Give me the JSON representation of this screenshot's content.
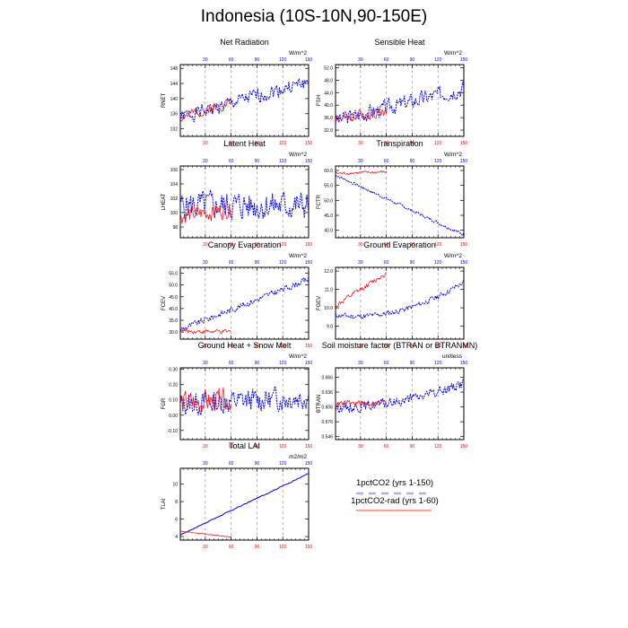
{
  "page_title": "Indonesia (10S-10N,90-150E)",
  "colors": {
    "series1": "#0000ff",
    "series2": "#ff0000",
    "dashed": "#888888"
  },
  "legend": {
    "entries": [
      "1pctCO2 (yrs 1-150)",
      "1pctCO2-rad (yrs 1-60)"
    ]
  },
  "chart_data": [
    {
      "type": "line",
      "title": "Net Radiation",
      "ylabel": "RNET",
      "units": "W/m^2",
      "xlim": [
        1,
        150
      ],
      "ylim": [
        130,
        149
      ],
      "ytick_values": [
        132,
        136,
        140,
        144,
        148
      ],
      "ytick_labels": [
        "132",
        "136",
        "140",
        "144",
        "148"
      ],
      "xtick_values": [
        30,
        60,
        90,
        120,
        150
      ],
      "xtick_labels": [
        "30",
        "60",
        "90",
        "120",
        "150"
      ],
      "vlines": [
        30,
        60,
        90,
        120
      ],
      "series": [
        {
          "color": "blue",
          "style": "dashed",
          "length": 150,
          "start": 135,
          "end": 144.5,
          "noise": 2.2,
          "curve": 0,
          "seed": 1
        },
        {
          "color": "red",
          "style": "solid",
          "length": 60,
          "start": 135,
          "end": 139,
          "noise": 1.6,
          "curve": 0,
          "seed": 2
        }
      ]
    },
    {
      "type": "line",
      "title": "Sensible Heat",
      "ylabel": "FSH",
      "units": "W/m^2",
      "xlim": [
        1,
        150
      ],
      "ylim": [
        30,
        53
      ],
      "ytick_values": [
        32,
        36,
        40,
        44,
        48,
        52
      ],
      "ytick_labels": [
        "32.0",
        "36.0",
        "40.0",
        "44.0",
        "48.0",
        "52.0"
      ],
      "xtick_values": [
        30,
        60,
        90,
        120,
        150
      ],
      "xtick_labels": [
        "30",
        "60",
        "90",
        "120",
        "150"
      ],
      "vlines": [
        30,
        60,
        90,
        120
      ],
      "series": [
        {
          "color": "blue",
          "style": "dashed",
          "length": 150,
          "start": 35,
          "end": 45.5,
          "noise": 3.0,
          "curve": 0,
          "seed": 3
        },
        {
          "color": "red",
          "style": "solid",
          "length": 60,
          "start": 36,
          "end": 38,
          "noise": 2.0,
          "curve": 0,
          "seed": 4
        }
      ]
    },
    {
      "type": "line",
      "title": "Latent Heat",
      "ylabel": "LHEAT",
      "units": "W/m^2",
      "xlim": [
        1,
        150
      ],
      "ylim": [
        96.5,
        106.5
      ],
      "ytick_values": [
        98,
        100,
        102,
        104,
        106
      ],
      "ytick_labels": [
        "98",
        "100",
        "102",
        "104",
        "106"
      ],
      "xtick_values": [
        30,
        60,
        90,
        120,
        150
      ],
      "xtick_labels": [
        "30",
        "60",
        "90",
        "120",
        "150"
      ],
      "vlines": [
        30,
        60,
        90,
        120
      ],
      "series": [
        {
          "color": "blue",
          "style": "dashed",
          "length": 150,
          "start": 101,
          "end": 101,
          "noise": 2.4,
          "curve": 0,
          "seed": 5
        },
        {
          "color": "red",
          "style": "solid",
          "length": 60,
          "start": 99.5,
          "end": 100.5,
          "noise": 1.4,
          "curve": 0,
          "seed": 6
        }
      ]
    },
    {
      "type": "line",
      "title": "Transpiration",
      "ylabel": "FCTR",
      "units": "W/m^2",
      "xlim": [
        1,
        150
      ],
      "ylim": [
        37.5,
        61.5
      ],
      "ytick_values": [
        40,
        45,
        50,
        55,
        60
      ],
      "ytick_labels": [
        "40.0",
        "45.0",
        "50.0",
        "55.0",
        "60.0"
      ],
      "xtick_values": [
        30,
        60,
        90,
        120,
        150
      ],
      "xtick_labels": [
        "30",
        "60",
        "90",
        "120",
        "150"
      ],
      "vlines": [
        30,
        60,
        90,
        120
      ],
      "series": [
        {
          "color": "blue",
          "style": "dashed",
          "length": 150,
          "start": 58.5,
          "end": 38.5,
          "noise": 0.6,
          "curve": 0,
          "seed": 7
        },
        {
          "color": "red",
          "style": "solid",
          "length": 60,
          "start": 59,
          "end": 59.5,
          "noise": 0.6,
          "curve": 0,
          "seed": 8
        }
      ]
    },
    {
      "type": "line",
      "title": "Canopy Evaporation",
      "ylabel": "FCEV",
      "units": "W/m^2",
      "xlim": [
        1,
        150
      ],
      "ylim": [
        27,
        57.5
      ],
      "ytick_values": [
        30,
        35,
        40,
        45,
        50,
        55
      ],
      "ytick_labels": [
        "30.0",
        "35.0",
        "40.0",
        "45.0",
        "50.0",
        "55.0"
      ],
      "xtick_values": [
        30,
        60,
        90,
        120,
        150
      ],
      "xtick_labels": [
        "30",
        "60",
        "90",
        "120",
        "150"
      ],
      "vlines": [
        30,
        60,
        90,
        120
      ],
      "series": [
        {
          "color": "blue",
          "style": "dashed",
          "length": 150,
          "start": 31,
          "end": 52.5,
          "noise": 1.6,
          "curve": 0,
          "seed": 9
        },
        {
          "color": "red",
          "style": "solid",
          "length": 60,
          "start": 30.5,
          "end": 30,
          "noise": 1.2,
          "curve": 0,
          "seed": 10
        }
      ]
    },
    {
      "type": "line",
      "title": "Ground Evaporation",
      "ylabel": "FGEV",
      "units": "W/m^2",
      "xlim": [
        1,
        150
      ],
      "ylim": [
        8.3,
        12.2
      ],
      "ytick_values": [
        9,
        10,
        11,
        12
      ],
      "ytick_labels": [
        "9.0",
        "10.0",
        "11.0",
        "12.0"
      ],
      "xtick_values": [
        30,
        60,
        90,
        120,
        150
      ],
      "xtick_labels": [
        "30",
        "60",
        "90",
        "120",
        "150"
      ],
      "vlines": [
        30,
        60,
        90,
        120
      ],
      "series": [
        {
          "color": "blue",
          "style": "dashed",
          "length": 150,
          "start": 9.6,
          "end": 11.4,
          "noise": 0.18,
          "curve": -2.6,
          "seed": 11
        },
        {
          "color": "red",
          "style": "solid",
          "length": 60,
          "start": 10.1,
          "end": 11.9,
          "noise": 0.18,
          "curve": 0,
          "seed": 12
        }
      ]
    },
    {
      "type": "line",
      "title": "Ground Heat + Snow Melt",
      "ylabel": "FGR",
      "units": "W/m^2",
      "xlim": [
        1,
        150
      ],
      "ylim": [
        -0.16,
        0.31
      ],
      "ytick_values": [
        -0.1,
        0,
        0.1,
        0.2,
        0.3
      ],
      "ytick_labels": [
        "-0.10",
        "0.00",
        "0.10",
        "0.20",
        "0.30"
      ],
      "xtick_values": [
        30,
        60,
        90,
        120,
        150
      ],
      "xtick_labels": [
        "30",
        "60",
        "90",
        "120",
        "150"
      ],
      "vlines": [
        30,
        60,
        90,
        120
      ],
      "series": [
        {
          "color": "blue",
          "style": "dashed",
          "length": 150,
          "start": 0.07,
          "end": 0.12,
          "noise": 0.09,
          "curve": 0,
          "seed": 13
        },
        {
          "color": "red",
          "style": "solid",
          "length": 60,
          "start": 0.08,
          "end": 0.1,
          "noise": 0.09,
          "curve": 0,
          "seed": 14
        }
      ]
    },
    {
      "type": "line",
      "title": "Soil moisture factor (BTRAN or BTRANMN)",
      "ylabel": "BTRAN",
      "units": "unitless",
      "xlim": [
        1,
        150
      ],
      "ylim": [
        0.54,
        0.685
      ],
      "ytick_values": [
        0.546,
        0.576,
        0.606,
        0.636,
        0.666
      ],
      "ytick_labels": [
        "0.546",
        "0.576",
        "0.606",
        "0.636",
        "0.666"
      ],
      "xtick_values": [
        30,
        60,
        90,
        120,
        150
      ],
      "xtick_labels": [
        "30",
        "60",
        "90",
        "120",
        "150"
      ],
      "vlines": [
        30,
        60,
        90,
        120
      ],
      "series": [
        {
          "color": "blue",
          "style": "dashed",
          "length": 150,
          "start": 0.605,
          "end": 0.655,
          "noise": 0.012,
          "curve": -0.05,
          "seed": 15
        },
        {
          "color": "red",
          "style": "solid",
          "length": 60,
          "start": 0.612,
          "end": 0.615,
          "noise": 0.008,
          "curve": 0,
          "seed": 16
        }
      ]
    },
    {
      "type": "line",
      "title": "Total LAI",
      "ylabel": "TLAI",
      "units": "m2/m2",
      "xlim": [
        1,
        150
      ],
      "ylim": [
        3.6,
        11.8
      ],
      "ytick_values": [
        4,
        6,
        8,
        10
      ],
      "ytick_labels": [
        "4",
        "6",
        "8",
        "10"
      ],
      "xtick_values": [
        30,
        60,
        90,
        120,
        150
      ],
      "xtick_labels": [
        "30",
        "60",
        "90",
        "120",
        "150"
      ],
      "vlines": [
        30,
        60,
        90,
        120
      ],
      "series": [
        {
          "color": "blue",
          "style": "solid",
          "length": 150,
          "start": 4.2,
          "end": 11.2,
          "noise": 0.07,
          "curve": 0,
          "seed": 17
        },
        {
          "color": "red",
          "style": "solid",
          "length": 60,
          "start": 4.6,
          "end": 3.95,
          "noise": 0.06,
          "curve": 0,
          "seed": 18
        }
      ]
    }
  ]
}
